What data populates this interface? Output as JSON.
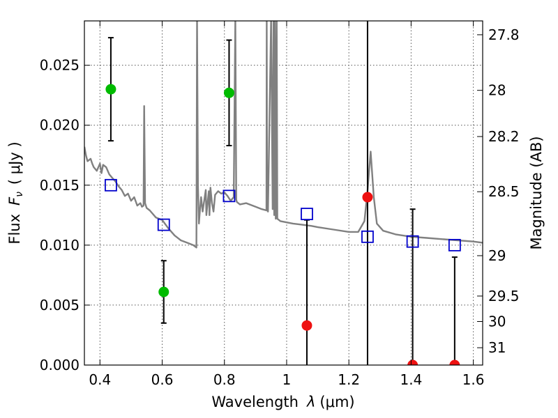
{
  "chart_data": {
    "type": "scatter",
    "xlabel_text": "Wavelength",
    "xlabel_symbol": "λ",
    "xlabel_unit": "(μm)",
    "ylabel_text": "Flux",
    "ylabel_symbol": "F",
    "ylabel_sub": "ν",
    "ylabel_unit": "( μJy )",
    "y2label": "Magnitude (AB)",
    "xlim": [
      0.35,
      1.63
    ],
    "ylim": [
      0.0,
      0.0287
    ],
    "grid": true,
    "x_ticks": [
      0.4,
      0.6,
      0.8,
      1.0,
      1.2,
      1.4,
      1.6
    ],
    "x_tick_labels": [
      "0.4",
      "0.6",
      "0.8",
      "1",
      "1.2",
      "1.4",
      "1.6"
    ],
    "y_ticks": [
      0.0,
      0.005,
      0.01,
      0.015,
      0.02,
      0.025
    ],
    "y_tick_labels": [
      "0.000",
      "0.005",
      "0.010",
      "0.015",
      "0.020",
      "0.025"
    ],
    "mag_ticks": [
      27.8,
      28,
      28.2,
      28.5,
      29,
      29.5,
      30,
      31
    ],
    "mag_tick_labels": [
      "27.8",
      "28",
      "28.2",
      "28.5",
      "29",
      "29.5",
      "30",
      "31"
    ],
    "colors": {
      "model": "#808080",
      "detection": "#00bb00",
      "upper_limit": "#ee1111",
      "model_photometry": "#0000cc",
      "error_bar": "#000000"
    },
    "model_sed": {
      "x": [
        0.35,
        0.355,
        0.36,
        0.37,
        0.375,
        0.38,
        0.39,
        0.4,
        0.405,
        0.41,
        0.42,
        0.43,
        0.44,
        0.45,
        0.46,
        0.47,
        0.48,
        0.49,
        0.5,
        0.51,
        0.52,
        0.53,
        0.535,
        0.54,
        0.542,
        0.545,
        0.55,
        0.56,
        0.58,
        0.6,
        0.62,
        0.64,
        0.66,
        0.68,
        0.7,
        0.71,
        0.712,
        0.715,
        0.718,
        0.72,
        0.725,
        0.73,
        0.74,
        0.742,
        0.745,
        0.75,
        0.752,
        0.755,
        0.76,
        0.765,
        0.77,
        0.78,
        0.79,
        0.8,
        0.81,
        0.82,
        0.83,
        0.835,
        0.838,
        0.84,
        0.85,
        0.87,
        0.9,
        0.92,
        0.935,
        0.936,
        0.937,
        0.938,
        0.94,
        0.95,
        0.955,
        0.958,
        0.96,
        0.962,
        0.965,
        0.968,
        0.97,
        0.975,
        0.98,
        1.0,
        1.02,
        1.05,
        1.08,
        1.1,
        1.15,
        1.2,
        1.23,
        1.25,
        1.26,
        1.27,
        1.28,
        1.29,
        1.31,
        1.35,
        1.4,
        1.45,
        1.5,
        1.55,
        1.6,
        1.63
      ],
      "y": [
        0.0182,
        0.0175,
        0.017,
        0.0172,
        0.0168,
        0.0165,
        0.0162,
        0.0168,
        0.016,
        0.0167,
        0.0165,
        0.0159,
        0.0156,
        0.0153,
        0.0149,
        0.0146,
        0.0141,
        0.0143,
        0.0137,
        0.014,
        0.0133,
        0.0135,
        0.0132,
        0.0133,
        0.0216,
        0.0135,
        0.0131,
        0.0129,
        0.0123,
        0.0121,
        0.0114,
        0.0108,
        0.0104,
        0.0102,
        0.01,
        0.0098,
        0.029,
        0.015,
        0.0118,
        0.0125,
        0.014,
        0.0128,
        0.0146,
        0.0125,
        0.0133,
        0.0145,
        0.0125,
        0.0148,
        0.0135,
        0.0128,
        0.0142,
        0.0145,
        0.0143,
        0.0144,
        0.0141,
        0.0137,
        0.014,
        0.029,
        0.0138,
        0.0136,
        0.0134,
        0.0135,
        0.0132,
        0.013,
        0.0129,
        0.029,
        0.0132,
        0.0129,
        0.0128,
        0.029,
        0.013,
        0.029,
        0.0125,
        0.029,
        0.0122,
        0.029,
        0.0122,
        0.0121,
        0.012,
        0.0119,
        0.0118,
        0.0117,
        0.0116,
        0.0115,
        0.0113,
        0.0111,
        0.0111,
        0.012,
        0.0145,
        0.0178,
        0.014,
        0.0118,
        0.0112,
        0.0109,
        0.0107,
        0.0106,
        0.0105,
        0.0104,
        0.0103,
        0.0102
      ]
    },
    "model_photometry": {
      "x": [
        0.435,
        0.605,
        0.815,
        1.065,
        1.26,
        1.405,
        1.54
      ],
      "y": [
        0.015,
        0.0117,
        0.0141,
        0.0126,
        0.0107,
        0.0103,
        0.01
      ]
    },
    "observed": [
      {
        "x": 0.435,
        "y": 0.023,
        "err_low": 0.0043,
        "err_high": 0.0043,
        "kind": "detection"
      },
      {
        "x": 0.605,
        "y": 0.0061,
        "err_low": 0.0026,
        "err_high": 0.0026,
        "kind": "detection"
      },
      {
        "x": 0.815,
        "y": 0.0227,
        "err_low": 0.0044,
        "err_high": 0.0044,
        "kind": "detection"
      },
      {
        "x": 1.065,
        "y": 0.0033,
        "err_low": 0.0033,
        "err_high": 0.0088,
        "kind": "upper_limit"
      },
      {
        "x": 1.26,
        "y": 0.014,
        "err_low": 0.014,
        "err_high": 0.015,
        "kind": "upper_limit"
      },
      {
        "x": 1.405,
        "y": 0.0,
        "err_low": 0.0,
        "err_high": 0.013,
        "kind": "upper_limit"
      },
      {
        "x": 1.54,
        "y": 0.0,
        "err_low": 0.0,
        "err_high": 0.009,
        "kind": "upper_limit"
      }
    ]
  }
}
